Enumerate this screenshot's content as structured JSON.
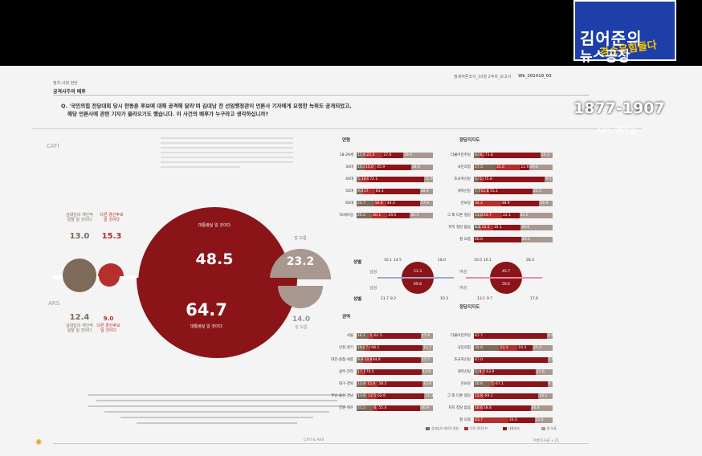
{
  "overlay": {
    "logo_line1": "김어준의",
    "logo_line2": "뉴스공장",
    "logo_line3": "겸손은힘들다",
    "years": "1877-1907",
    "ars": "ARS 밴버실"
  },
  "doc": {
    "section": "정치·사회 현안",
    "subsection": "공격사주의 배후",
    "header_right": "정세여론조사_10월 2주차_보고서",
    "header_code": "Wk_202410_03",
    "question_line1": "Q. '국민의힘 전당대회 당시 한동훈 후보에 대해 공격해 달라'며 김대남 전 선임행정관이 언론사 기자에게 요청한 녹취도 공개되었고,",
    "question_line2": "해당 언론사에 관련 기자가 울라오기도 했습니다. 이 사건의 배후가 누구라고 생각하십니까?",
    "cati": "CATI",
    "ars_label": "ARS",
    "footer_center": "CATI & ARS",
    "footer_right": "여론조사꽃 • 21"
  },
  "cati": {
    "left_value": "13.0",
    "left_label": "김대남의 개인적 일탈 일 것이다",
    "mid_value": "15.3",
    "mid_label": "다른 경선후보 일 것이다",
    "big_value": "48.5",
    "big_label": "대통령실 일 것이다",
    "right_value": "23.2",
    "right_label": "잘 모름"
  },
  "ars": {
    "left_value": "12.4",
    "left_label": "김대남의 개인적 일탈 일 것이다",
    "mid_value": "9.0",
    "mid_label": "다른 경선후보 일 것이다",
    "big_value": "64.7",
    "big_label": "대통령실 일 것이다",
    "right_value": "14.0",
    "right_label": "잘 모름"
  },
  "age_table": {
    "title": "연령",
    "rows": [
      {
        "label": "18-29세",
        "vals": [
          "11.9",
          "22.2",
          "27.0",
          "39.0"
        ]
      },
      {
        "label": "30대",
        "vals": [
          "10.4",
          "15.0",
          "45.9",
          "28.6"
        ]
      },
      {
        "label": "40대",
        "vals": [
          "5.1",
          "10.9",
          "72.1",
          "11.9"
        ]
      },
      {
        "label": "50대",
        "vals": [
          "9.0",
          "17",
          "64.3",
          "18.9"
        ]
      },
      {
        "label": "60대",
        "vals": [
          "22.7",
          "16.0",
          "44.3",
          "17.0"
        ]
      },
      {
        "label": "70세이상",
        "vals": [
          "20.2",
          "20.1",
          "29.5",
          "30.3"
        ]
      }
    ]
  },
  "party_table": {
    "title": "정당지지도",
    "rows": [
      {
        "label": "더불어민주당",
        "vals": [
          "6.9",
          "6.2",
          "71.6",
          "15.3"
        ]
      },
      {
        "label": "국민의힘",
        "vals": [
          "27.5",
          "31.0",
          "11.9",
          "29.6"
        ]
      },
      {
        "label": "조국혁신당",
        "vals": [
          "5.9",
          "5.8",
          "75.8",
          "9.5"
        ]
      },
      {
        "label": "개혁신당",
        "vals": [
          "7.7",
          "11.8",
          "55.1",
          "25.5"
        ]
      },
      {
        "label": "진보당",
        "vals": [
          "34.2",
          "48.9",
          "16.9"
        ]
      },
      {
        "label": "그 외 다른 정당",
        "vals": [
          "11.0",
          "24.7",
          "22.1",
          "42.2"
        ]
      },
      {
        "label": "지지 정당 없음",
        "vals": [
          "8.8",
          "15.5",
          "35.1",
          "40.6"
        ]
      },
      {
        "label": "잘 모름",
        "vals": [
          "60.0",
          "40.0"
        ]
      }
    ]
  },
  "gender": {
    "title": "성별",
    "male_label": "남성",
    "female_label": "여성",
    "male_cati": [
      "16.1",
      "14.5",
      "51.3",
      "18.0"
    ],
    "male_ars": [
      "11.7",
      "8.2",
      "69.8",
      "10.3"
    ],
    "female_cati": [
      "10.0",
      "16.1",
      "45.7",
      "28.3"
    ],
    "female_ars": [
      "13.1",
      "9.7",
      "59.6",
      "17.6"
    ]
  },
  "region_table": {
    "title": "권역",
    "rows": [
      {
        "label": "서울",
        "vals": [
          "16.1",
          "5.8",
          "62.5",
          "15.6"
        ]
      },
      {
        "label": "인천·경기",
        "vals": [
          "10.8",
          "7.4",
          "68.1",
          "13.7"
        ]
      },
      {
        "label": "대전·충청·세종",
        "vals": [
          "8.9",
          "10.8",
          "64.8",
          "15.5"
        ]
      },
      {
        "label": "광주·전라",
        "vals": [
          "2.9",
          "7.7",
          "70.5",
          "13.9"
        ]
      },
      {
        "label": "대구·경북",
        "vals": [
          "12.8",
          "15.0",
          "58.5",
          "13.6"
        ]
      },
      {
        "label": "부산·울산·경남",
        "vals": [
          "13.8",
          "12.5",
          "62.6",
          "11.1"
        ]
      },
      {
        "label": "강원·제주",
        "vals": [
          "21.5",
          "6.2",
          "55.4",
          "16.9"
        ]
      }
    ]
  },
  "party_table_ars": {
    "title": "정당지지도",
    "rows": [
      {
        "label": "더불어민주당",
        "vals": [
          "87.7",
          "6.8"
        ]
      },
      {
        "label": "국민의힘",
        "vals": [
          "32.0",
          "23.3",
          "19.3",
          "25.4"
        ]
      },
      {
        "label": "조국혁신당",
        "vals": [
          "87.0",
          "5.8"
        ]
      },
      {
        "label": "개혁신당",
        "vals": [
          "5.8",
          "8.7",
          "63.9",
          "21.6"
        ]
      },
      {
        "label": "진보당",
        "vals": [
          "20.6",
          "5.8",
          "67.1",
          "6.5"
        ]
      },
      {
        "label": "그 외 다른 정당",
        "vals": [
          "12.8",
          "69.1",
          "18.1"
        ]
      },
      {
        "label": "지지 정당 없음",
        "vals": [
          "10.6",
          "58.8",
          "26.8"
        ]
      },
      {
        "label": "잘 모름",
        "vals": [
          "43.7",
          "33.5",
          "22.8"
        ]
      }
    ]
  },
  "legend": [
    "김대남의 개인적 일탈",
    "다른 경선후보",
    "대통령실",
    "잘 모름"
  ],
  "colors": {
    "brown": "#7d6a58",
    "red": "#b5302c",
    "dark_red": "#8b1418",
    "gray": "#a89890"
  }
}
